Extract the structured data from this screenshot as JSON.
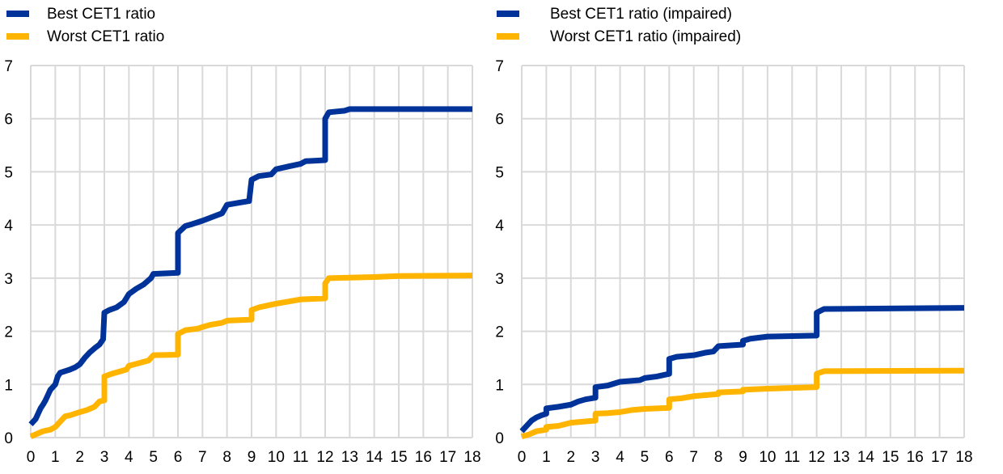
{
  "chart_data": [
    {
      "type": "line",
      "xlim": [
        0,
        18
      ],
      "ylim": [
        0,
        7
      ],
      "x_ticks": [
        0,
        1,
        2,
        3,
        4,
        5,
        6,
        7,
        8,
        9,
        10,
        11,
        12,
        13,
        14,
        15,
        16,
        17,
        18
      ],
      "y_ticks": [
        0,
        1,
        2,
        3,
        4,
        5,
        6,
        7
      ],
      "grid": true,
      "legend_position": "top-left",
      "series": [
        {
          "name": "Best CET1 ratio",
          "color": "#003399",
          "points": [
            [
              0,
              0.25
            ],
            [
              0.1,
              0.3
            ],
            [
              0.2,
              0.35
            ],
            [
              0.3,
              0.45
            ],
            [
              0.4,
              0.55
            ],
            [
              0.5,
              0.62
            ],
            [
              0.6,
              0.7
            ],
            [
              0.7,
              0.8
            ],
            [
              0.8,
              0.9
            ],
            [
              0.9,
              0.95
            ],
            [
              1.0,
              1.0
            ],
            [
              1.1,
              1.15
            ],
            [
              1.2,
              1.22
            ],
            [
              1.4,
              1.25
            ],
            [
              1.6,
              1.28
            ],
            [
              1.8,
              1.32
            ],
            [
              2.0,
              1.38
            ],
            [
              2.2,
              1.5
            ],
            [
              2.4,
              1.6
            ],
            [
              2.6,
              1.68
            ],
            [
              2.8,
              1.75
            ],
            [
              2.95,
              1.85
            ],
            [
              3.0,
              2.35
            ],
            [
              3.2,
              2.4
            ],
            [
              3.5,
              2.45
            ],
            [
              3.8,
              2.55
            ],
            [
              4.0,
              2.7
            ],
            [
              4.3,
              2.8
            ],
            [
              4.6,
              2.88
            ],
            [
              4.9,
              3.0
            ],
            [
              5.0,
              3.08
            ],
            [
              6.0,
              3.1
            ],
            [
              6.0,
              3.85
            ],
            [
              6.3,
              3.98
            ],
            [
              6.6,
              4.02
            ],
            [
              7.0,
              4.08
            ],
            [
              7.4,
              4.15
            ],
            [
              7.8,
              4.22
            ],
            [
              8.0,
              4.38
            ],
            [
              8.5,
              4.42
            ],
            [
              8.9,
              4.45
            ],
            [
              9.0,
              4.85
            ],
            [
              9.3,
              4.92
            ],
            [
              9.8,
              4.95
            ],
            [
              10.0,
              5.05
            ],
            [
              10.5,
              5.1
            ],
            [
              11.0,
              5.15
            ],
            [
              11.2,
              5.2
            ],
            [
              12.0,
              5.22
            ],
            [
              12.0,
              6.0
            ],
            [
              12.15,
              6.12
            ],
            [
              12.8,
              6.15
            ],
            [
              13.0,
              6.18
            ],
            [
              18,
              6.18
            ]
          ]
        },
        {
          "name": "Worst CET1 ratio",
          "color": "#ffb400",
          "points": [
            [
              0,
              0.02
            ],
            [
              0.3,
              0.08
            ],
            [
              0.5,
              0.12
            ],
            [
              0.8,
              0.15
            ],
            [
              1.0,
              0.2
            ],
            [
              1.2,
              0.3
            ],
            [
              1.4,
              0.4
            ],
            [
              1.6,
              0.42
            ],
            [
              1.8,
              0.45
            ],
            [
              2.0,
              0.48
            ],
            [
              2.3,
              0.52
            ],
            [
              2.6,
              0.58
            ],
            [
              2.8,
              0.68
            ],
            [
              3.0,
              0.7
            ],
            [
              3.0,
              1.15
            ],
            [
              3.3,
              1.2
            ],
            [
              3.6,
              1.24
            ],
            [
              3.9,
              1.28
            ],
            [
              4.0,
              1.35
            ],
            [
              4.4,
              1.4
            ],
            [
              4.8,
              1.45
            ],
            [
              5.0,
              1.55
            ],
            [
              6.0,
              1.56
            ],
            [
              6.0,
              1.95
            ],
            [
              6.3,
              2.02
            ],
            [
              6.8,
              2.05
            ],
            [
              7.0,
              2.08
            ],
            [
              7.3,
              2.12
            ],
            [
              7.8,
              2.16
            ],
            [
              8.0,
              2.2
            ],
            [
              9.0,
              2.22
            ],
            [
              9.0,
              2.4
            ],
            [
              9.3,
              2.45
            ],
            [
              9.8,
              2.5
            ],
            [
              10.0,
              2.52
            ],
            [
              10.5,
              2.56
            ],
            [
              11.0,
              2.6
            ],
            [
              12.0,
              2.62
            ],
            [
              12.0,
              2.9
            ],
            [
              12.15,
              3.0
            ],
            [
              14.0,
              3.02
            ],
            [
              15.0,
              3.04
            ],
            [
              18,
              3.05
            ]
          ]
        }
      ]
    },
    {
      "type": "line",
      "xlim": [
        0,
        18
      ],
      "ylim": [
        0,
        7
      ],
      "x_ticks": [
        0,
        1,
        2,
        3,
        4,
        5,
        6,
        7,
        8,
        9,
        10,
        11,
        12,
        13,
        14,
        15,
        16,
        17,
        18
      ],
      "y_ticks": [
        0,
        1,
        2,
        3,
        4,
        5,
        6,
        7
      ],
      "grid": true,
      "legend_position": "top-left",
      "series": [
        {
          "name": "Best CET1 ratio (impaired)",
          "color": "#003399",
          "points": [
            [
              0,
              0.12
            ],
            [
              0.2,
              0.22
            ],
            [
              0.4,
              0.32
            ],
            [
              0.6,
              0.38
            ],
            [
              0.8,
              0.42
            ],
            [
              1.0,
              0.45
            ],
            [
              1.0,
              0.55
            ],
            [
              1.5,
              0.58
            ],
            [
              2.0,
              0.62
            ],
            [
              2.3,
              0.68
            ],
            [
              2.6,
              0.72
            ],
            [
              3.0,
              0.75
            ],
            [
              3.0,
              0.95
            ],
            [
              3.5,
              0.98
            ],
            [
              4.0,
              1.05
            ],
            [
              4.8,
              1.08
            ],
            [
              5.0,
              1.12
            ],
            [
              5.5,
              1.15
            ],
            [
              5.8,
              1.18
            ],
            [
              6.0,
              1.2
            ],
            [
              6.0,
              1.48
            ],
            [
              6.3,
              1.52
            ],
            [
              7.0,
              1.55
            ],
            [
              7.5,
              1.6
            ],
            [
              7.8,
              1.62
            ],
            [
              8.0,
              1.72
            ],
            [
              9.0,
              1.75
            ],
            [
              9.0,
              1.82
            ],
            [
              9.3,
              1.86
            ],
            [
              10.0,
              1.9
            ],
            [
              12.0,
              1.92
            ],
            [
              12.0,
              2.35
            ],
            [
              12.3,
              2.42
            ],
            [
              18,
              2.44
            ]
          ]
        },
        {
          "name": "Worst CET1 ratio (impaired)",
          "color": "#ffb400",
          "points": [
            [
              0,
              0.02
            ],
            [
              0.3,
              0.06
            ],
            [
              0.6,
              0.12
            ],
            [
              1.0,
              0.15
            ],
            [
              1.0,
              0.2
            ],
            [
              1.5,
              0.22
            ],
            [
              2.0,
              0.28
            ],
            [
              2.5,
              0.3
            ],
            [
              3.0,
              0.32
            ],
            [
              3.0,
              0.45
            ],
            [
              3.5,
              0.46
            ],
            [
              4.0,
              0.48
            ],
            [
              4.5,
              0.52
            ],
            [
              5.0,
              0.54
            ],
            [
              6.0,
              0.56
            ],
            [
              6.0,
              0.72
            ],
            [
              6.5,
              0.74
            ],
            [
              7.0,
              0.78
            ],
            [
              8.0,
              0.82
            ],
            [
              8.0,
              0.85
            ],
            [
              9.0,
              0.87
            ],
            [
              9.0,
              0.9
            ],
            [
              10.0,
              0.92
            ],
            [
              12.0,
              0.95
            ],
            [
              12.0,
              1.2
            ],
            [
              12.3,
              1.25
            ],
            [
              18,
              1.26
            ]
          ]
        }
      ]
    }
  ]
}
